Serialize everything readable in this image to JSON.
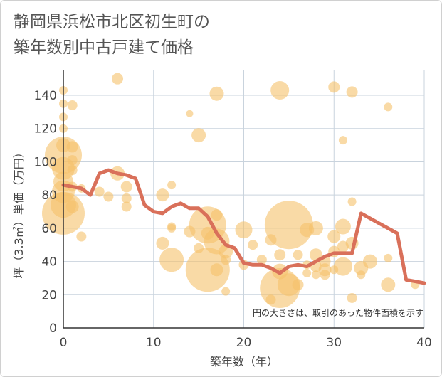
{
  "chart_data": {
    "type": "scatter",
    "title_line1": "静岡県浜松市北区初生町の",
    "title_line2": "築年数別中古戸建て価格",
    "xlabel": "築年数（年）",
    "ylabel": "坪（3.3㎡）単価（万円）",
    "note": "円の大きさは、取引のあった物件面積を示す",
    "xlim": [
      0,
      40
    ],
    "ylim": [
      0,
      155
    ],
    "xticks": [
      0,
      10,
      20,
      30,
      40
    ],
    "yticks": [
      0,
      20,
      40,
      60,
      80,
      100,
      120,
      140
    ],
    "grid": true,
    "colors": {
      "bubble": "#f5c26b",
      "line": "#d9705a",
      "grid": "#c9d3dd",
      "axis": "#333333"
    },
    "bubbles": [
      {
        "x": 0,
        "y": 143,
        "s": 6
      },
      {
        "x": 0,
        "y": 135,
        "s": 6
      },
      {
        "x": 0,
        "y": 127,
        "s": 6
      },
      {
        "x": 0,
        "y": 120,
        "s": 6
      },
      {
        "x": 0,
        "y": 110,
        "s": 10
      },
      {
        "x": 0,
        "y": 104,
        "s": 26
      },
      {
        "x": 0,
        "y": 96,
        "s": 16
      },
      {
        "x": 0,
        "y": 88,
        "s": 14
      },
      {
        "x": 0,
        "y": 82,
        "s": 16
      },
      {
        "x": 0,
        "y": 74,
        "s": 18
      },
      {
        "x": 0,
        "y": 69,
        "s": 30
      },
      {
        "x": 1,
        "y": 134,
        "s": 7
      },
      {
        "x": 1,
        "y": 109,
        "s": 8
      },
      {
        "x": 1,
        "y": 101,
        "s": 7
      },
      {
        "x": 1,
        "y": 95,
        "s": 7
      },
      {
        "x": 1,
        "y": 85,
        "s": 7
      },
      {
        "x": 1,
        "y": 73,
        "s": 9
      },
      {
        "x": 2,
        "y": 84,
        "s": 6
      },
      {
        "x": 2,
        "y": 55,
        "s": 7
      },
      {
        "x": 4,
        "y": 82,
        "s": 7
      },
      {
        "x": 5,
        "y": 79,
        "s": 7
      },
      {
        "x": 6,
        "y": 150,
        "s": 8
      },
      {
        "x": 6,
        "y": 93,
        "s": 10
      },
      {
        "x": 7,
        "y": 85,
        "s": 8
      },
      {
        "x": 7,
        "y": 78,
        "s": 7
      },
      {
        "x": 7,
        "y": 73,
        "s": 7
      },
      {
        "x": 11,
        "y": 80,
        "s": 9
      },
      {
        "x": 11,
        "y": 51,
        "s": 9
      },
      {
        "x": 12,
        "y": 86,
        "s": 6
      },
      {
        "x": 12,
        "y": 61,
        "s": 6
      },
      {
        "x": 12,
        "y": 60,
        "s": 6
      },
      {
        "x": 12,
        "y": 41,
        "s": 17
      },
      {
        "x": 14,
        "y": 129,
        "s": 5
      },
      {
        "x": 14,
        "y": 58,
        "s": 8
      },
      {
        "x": 15,
        "y": 116,
        "s": 10
      },
      {
        "x": 15,
        "y": 48,
        "s": 7
      },
      {
        "x": 16,
        "y": 62,
        "s": 26
      },
      {
        "x": 16,
        "y": 57,
        "s": 9
      },
      {
        "x": 16,
        "y": 35,
        "s": 31
      },
      {
        "x": 17,
        "y": 141,
        "s": 10
      },
      {
        "x": 17,
        "y": 68,
        "s": 8
      },
      {
        "x": 17,
        "y": 52,
        "s": 18
      },
      {
        "x": 17,
        "y": 35,
        "s": 9
      },
      {
        "x": 18,
        "y": 46,
        "s": 10
      },
      {
        "x": 18,
        "y": 41,
        "s": 7
      },
      {
        "x": 18,
        "y": 22,
        "s": 6
      },
      {
        "x": 20,
        "y": 59,
        "s": 12
      },
      {
        "x": 20,
        "y": 38,
        "s": 7
      },
      {
        "x": 21,
        "y": 50,
        "s": 7
      },
      {
        "x": 22,
        "y": 41,
        "s": 7
      },
      {
        "x": 23,
        "y": 53,
        "s": 8
      },
      {
        "x": 23,
        "y": 17,
        "s": 7
      },
      {
        "x": 24,
        "y": 143,
        "s": 13
      },
      {
        "x": 24,
        "y": 44,
        "s": 8
      },
      {
        "x": 24,
        "y": 34,
        "s": 11
      },
      {
        "x": 24,
        "y": 24,
        "s": 28
      },
      {
        "x": 25,
        "y": 62,
        "s": 34
      },
      {
        "x": 25,
        "y": 26,
        "s": 16
      },
      {
        "x": 26,
        "y": 44,
        "s": 7
      },
      {
        "x": 26,
        "y": 26,
        "s": 8
      },
      {
        "x": 27,
        "y": 59,
        "s": 10
      },
      {
        "x": 27,
        "y": 38,
        "s": 6
      },
      {
        "x": 27,
        "y": 33,
        "s": 6
      },
      {
        "x": 28,
        "y": 60,
        "s": 10
      },
      {
        "x": 28,
        "y": 44,
        "s": 9
      },
      {
        "x": 28,
        "y": 37,
        "s": 8
      },
      {
        "x": 28,
        "y": 32,
        "s": 6
      },
      {
        "x": 29,
        "y": 40,
        "s": 8
      },
      {
        "x": 29,
        "y": 35,
        "s": 9
      },
      {
        "x": 29,
        "y": 32,
        "s": 7
      },
      {
        "x": 30,
        "y": 145,
        "s": 8
      },
      {
        "x": 30,
        "y": 55,
        "s": 9
      },
      {
        "x": 30,
        "y": 46,
        "s": 8
      },
      {
        "x": 30,
        "y": 35,
        "s": 6
      },
      {
        "x": 31,
        "y": 113,
        "s": 6
      },
      {
        "x": 31,
        "y": 61,
        "s": 11
      },
      {
        "x": 31,
        "y": 49,
        "s": 8
      },
      {
        "x": 31,
        "y": 37,
        "s": 13
      },
      {
        "x": 32,
        "y": 142,
        "s": 8
      },
      {
        "x": 32,
        "y": 76,
        "s": 6
      },
      {
        "x": 32,
        "y": 51,
        "s": 9
      },
      {
        "x": 32,
        "y": 18,
        "s": 7
      },
      {
        "x": 33,
        "y": 36,
        "s": 10
      },
      {
        "x": 33,
        "y": 32,
        "s": 6
      },
      {
        "x": 34,
        "y": 40,
        "s": 10
      },
      {
        "x": 36,
        "y": 133,
        "s": 6
      },
      {
        "x": 36,
        "y": 42,
        "s": 6
      },
      {
        "x": 36,
        "y": 26,
        "s": 10
      },
      {
        "x": 39,
        "y": 26,
        "s": 6
      }
    ],
    "series": [
      {
        "x": [
          0,
          1,
          2,
          3,
          4,
          5,
          6,
          7,
          8,
          9,
          10,
          11,
          12,
          13,
          14,
          15,
          16,
          17,
          18,
          19,
          20,
          21,
          22,
          23,
          24,
          25,
          26,
          27,
          28,
          29,
          30,
          31,
          32,
          33,
          34,
          35,
          36,
          37,
          38,
          39,
          40
        ],
        "y": [
          86,
          85,
          84,
          80,
          93,
          95,
          93,
          92,
          90,
          74,
          70,
          69,
          73,
          75,
          72,
          72,
          67,
          57,
          50,
          48,
          39,
          38,
          38,
          36,
          33,
          37,
          38,
          37,
          40,
          43,
          45,
          45,
          45,
          69,
          66,
          63,
          60,
          57,
          29,
          28,
          27
        ]
      }
    ]
  }
}
